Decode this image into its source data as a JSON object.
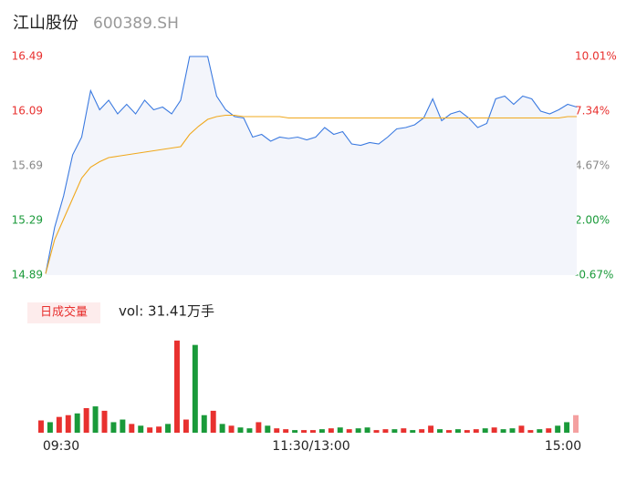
{
  "header": {
    "name": "江山股份",
    "code": "600389.SH"
  },
  "chart_data": [
    {
      "type": "line",
      "xlim": [
        0,
        59
      ],
      "xticks": [
        {
          "value": 0,
          "label": "09:30"
        },
        {
          "value": 29.5,
          "label": "11:30/13:00"
        },
        {
          "value": 59,
          "label": "15:00"
        }
      ],
      "ylim": [
        14.89,
        16.49
      ],
      "yticks": [
        16.49,
        16.09,
        15.69,
        15.29,
        14.89
      ],
      "ytick_colors": [
        "#e8312f",
        "#e8312f",
        "#888888",
        "#1a9a3a",
        "#1a9a3a"
      ],
      "y2lim": [
        -0.67,
        10.01
      ],
      "y2ticks": [
        {
          "value": 10.01,
          "label": "10.01%"
        },
        {
          "value": 7.34,
          "label": "7.34%"
        },
        {
          "value": 4.67,
          "label": "4.67%"
        },
        {
          "value": 2.0,
          "label": "2.00%"
        },
        {
          "value": -0.67,
          "label": "-0.67%"
        }
      ],
      "series": [
        {
          "color": "#3b7ae0",
          "values": [
            14.9,
            15.24,
            15.47,
            15.77,
            15.9,
            16.24,
            16.1,
            16.17,
            16.07,
            16.14,
            16.07,
            16.17,
            16.1,
            16.12,
            16.07,
            16.17,
            16.49,
            16.49,
            16.49,
            16.2,
            16.1,
            16.05,
            16.04,
            15.9,
            15.92,
            15.87,
            15.9,
            15.89,
            15.9,
            15.88,
            15.9,
            15.97,
            15.92,
            15.94,
            15.85,
            15.84,
            15.86,
            15.85,
            15.9,
            15.96,
            15.97,
            15.99,
            16.04,
            16.18,
            16.02,
            16.07,
            16.09,
            16.04,
            15.97,
            16.0,
            16.18,
            16.2,
            16.14,
            16.2,
            16.18,
            16.09,
            16.07,
            16.1,
            16.14,
            16.12
          ]
        },
        {
          "color": "#f0a81c",
          "values": [
            14.9,
            15.15,
            15.3,
            15.45,
            15.6,
            15.68,
            15.72,
            15.75,
            15.76,
            15.77,
            15.78,
            15.79,
            15.8,
            15.81,
            15.82,
            15.83,
            15.92,
            15.98,
            16.03,
            16.05,
            16.06,
            16.06,
            16.05,
            16.05,
            16.05,
            16.05,
            16.05,
            16.04,
            16.04,
            16.04,
            16.04,
            16.04,
            16.04,
            16.04,
            16.04,
            16.04,
            16.04,
            16.04,
            16.04,
            16.04,
            16.04,
            16.04,
            16.04,
            16.04,
            16.04,
            16.04,
            16.04,
            16.04,
            16.04,
            16.04,
            16.04,
            16.04,
            16.04,
            16.04,
            16.04,
            16.04,
            16.04,
            16.04,
            16.05,
            16.05
          ]
        }
      ]
    },
    {
      "type": "volume",
      "title": "日成交量",
      "subtitle": "vol: 31.41万手",
      "ylim": [
        0,
        110
      ],
      "values": [
        14,
        12,
        18,
        20,
        22,
        28,
        30,
        25,
        12,
        15,
        10,
        8,
        6,
        7,
        10,
        105,
        15,
        100,
        20,
        25,
        10,
        8,
        6,
        5,
        12,
        8,
        5,
        4,
        3,
        3,
        3,
        4,
        5,
        6,
        4,
        5,
        6,
        3,
        4,
        4,
        5,
        3,
        4,
        8,
        4,
        3,
        4,
        3,
        4,
        5,
        6,
        4,
        5,
        8,
        3,
        4,
        5,
        8,
        12,
        20
      ],
      "colors": [
        "#e8312f",
        "#1a9a3a",
        "#e8312f",
        "#e8312f",
        "#1a9a3a",
        "#e8312f",
        "#1a9a3a",
        "#e8312f",
        "#1a9a3a",
        "#1a9a3a",
        "#e8312f",
        "#1a9a3a",
        "#e8312f",
        "#e8312f",
        "#1a9a3a",
        "#e8312f",
        "#e8312f",
        "#1a9a3a",
        "#1a9a3a",
        "#e8312f",
        "#1a9a3a",
        "#e8312f",
        "#1a9a3a",
        "#1a9a3a",
        "#e8312f",
        "#1a9a3a",
        "#e8312f",
        "#e8312f",
        "#1a9a3a",
        "#e8312f",
        "#e8312f",
        "#1a9a3a",
        "#e8312f",
        "#1a9a3a",
        "#e8312f",
        "#1a9a3a",
        "#1a9a3a",
        "#e8312f",
        "#e8312f",
        "#1a9a3a",
        "#e8312f",
        "#1a9a3a",
        "#e8312f",
        "#e8312f",
        "#1a9a3a",
        "#e8312f",
        "#1a9a3a",
        "#e8312f",
        "#e8312f",
        "#1a9a3a",
        "#e8312f",
        "#1a9a3a",
        "#1a9a3a",
        "#e8312f",
        "#e8312f",
        "#1a9a3a",
        "#e8312f",
        "#1a9a3a",
        "#1a9a3a",
        "#f4a0a0"
      ]
    }
  ]
}
